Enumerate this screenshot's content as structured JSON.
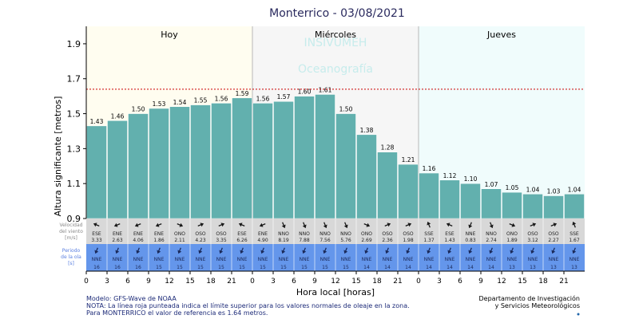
{
  "title": "Monterrico  -  03/08/2021",
  "days": [
    "Hoy",
    "Miércoles",
    "Jueves"
  ],
  "watermark": [
    "INSIVUMEH",
    "Oceanografía"
  ],
  "wind_label": [
    "Velocidad",
    "del viento",
    "[m/s]"
  ],
  "wave_label": [
    "Periodo",
    "de la ola",
    "[s]"
  ],
  "footer_left": [
    "Modelo: GFS-Wave de NOAA",
    "NOTA: La línea roja punteada indica el límite superior para los valores normales de oleaje en la zona.",
    "Para MONTERRICO el valor de referencia es 1.64 metros."
  ],
  "footer_right": [
    "Departamento de Investigación",
    "y Servicios Meteorológicos"
  ],
  "colors": {
    "bar": "#62b0ae",
    "bar_edge": "#ffffff",
    "day1_bg": "#fffdf0",
    "day2_bg": "#f6f6f6",
    "day3_bg": "#f0fcfc",
    "wind_band": "#d8d8d8",
    "wave_band": "#6496eb",
    "ref_line": "#cc0000",
    "title": "#2a2a5e"
  },
  "chart_data": {
    "type": "bar",
    "xlabel": "Hora local [horas]",
    "ylabel": "Altura significante [metros]",
    "ylim": [
      0.9,
      2.0
    ],
    "yticks": [
      0.9,
      1.1,
      1.3,
      1.5,
      1.7,
      1.9
    ],
    "reference_line": 1.64,
    "x_tick_labels": [
      "0",
      "3",
      "6",
      "9",
      "12",
      "15",
      "18",
      "21",
      "0",
      "3",
      "6",
      "9",
      "12",
      "15",
      "18",
      "21",
      "0",
      "3",
      "6",
      "9",
      "12",
      "15",
      "18",
      "21"
    ],
    "values": [
      1.43,
      1.46,
      1.5,
      1.53,
      1.54,
      1.55,
      1.56,
      1.59,
      1.56,
      1.57,
      1.6,
      1.61,
      1.5,
      1.38,
      1.28,
      1.21,
      1.16,
      1.12,
      1.1,
      1.07,
      1.05,
      1.04,
      1.03,
      1.04
    ],
    "value_labels": [
      "1.43",
      "1.46",
      "1.50",
      "1.53",
      "1.54",
      "1.55",
      "1.56",
      "1.59",
      "1.56",
      "1.57",
      "1.60",
      "1.61",
      "1.50",
      "1.38",
      "1.28",
      "1.21",
      "1.16",
      "1.12",
      "1.10",
      "1.07",
      "1.05",
      "1.04",
      "1.03",
      "1.04"
    ],
    "wind_dir": [
      "ESE",
      "ENE",
      "ENE",
      "ENE",
      "ONO",
      "OSO",
      "OSO",
      "ESE",
      "ENE",
      "NNO",
      "NNO",
      "NNO",
      "NNO",
      "ONO",
      "OSO",
      "OSO",
      "SSE",
      "ESE",
      "NNE",
      "NNO",
      "ONO",
      "OSO",
      "OSO",
      "SSE"
    ],
    "wind_speed": [
      "3.33",
      "2.63",
      "4.06",
      "1.86",
      "2.11",
      "4.23",
      "3.35",
      "6.26",
      "4.90",
      "8.19",
      "7.88",
      "7.56",
      "5.76",
      "2.69",
      "2.36",
      "1.98",
      "1.37",
      "1.43",
      "0.83",
      "2.74",
      "1.89",
      "3.12",
      "2.27",
      "1.67"
    ],
    "wave_dir": [
      "NNE",
      "NNE",
      "NNE",
      "NNE",
      "NNE",
      "NNE",
      "NNE",
      "NNE",
      "NNE",
      "NNE",
      "NNE",
      "NNE",
      "NNE",
      "NNE",
      "NNE",
      "NNE",
      "NNE",
      "NNE",
      "NNE",
      "NNE",
      "NNE",
      "NNE",
      "NNE",
      "NNE"
    ],
    "wave_period": [
      "16",
      "16",
      "16",
      "15",
      "15",
      "15",
      "15",
      "15",
      "15",
      "15",
      "15",
      "15",
      "15",
      "14",
      "14",
      "14",
      "14",
      "14",
      "14",
      "14",
      "13",
      "13",
      "13",
      "13"
    ]
  }
}
